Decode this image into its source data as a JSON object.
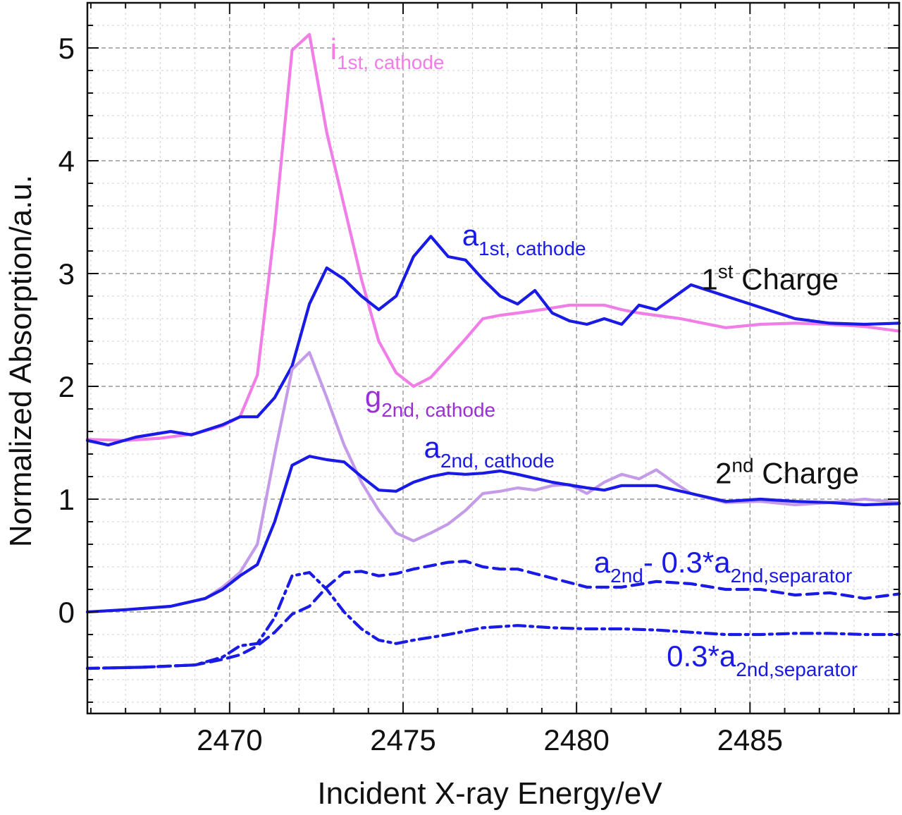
{
  "chart_data": {
    "type": "line",
    "xlabel": "Incident X-ray Energy/eV",
    "ylabel": "Normalized Absorption/a.u.",
    "xlim": [
      2465.9,
      2489.3
    ],
    "ylim": [
      -0.9,
      5.4
    ],
    "xticks": [
      2470,
      2475,
      2480,
      2485
    ],
    "yticks": [
      0,
      1,
      2,
      3,
      4,
      5
    ],
    "grid": true,
    "colors": {
      "pink": "#f07ee6",
      "blue": "#1a1ae6",
      "violet": "#c49be8",
      "violet_text": "#9b2fd6",
      "pink_text": "#f07ee6",
      "black": "#111111"
    },
    "series": [
      {
        "name": "i 1st, cathode",
        "color": "#f07ee6",
        "style": "solid",
        "x": [
          2465.9,
          2467.0,
          2468.0,
          2469.0,
          2469.8,
          2470.3,
          2470.8,
          2471.3,
          2471.8,
          2472.3,
          2472.8,
          2473.3,
          2473.8,
          2474.3,
          2474.8,
          2475.3,
          2475.8,
          2476.3,
          2476.8,
          2477.3,
          2477.8,
          2478.3,
          2479.0,
          2479.8,
          2480.8,
          2481.3,
          2481.8,
          2483.0,
          2484.3,
          2485.3,
          2486.3,
          2487.3,
          2488.3,
          2489.3
        ],
        "y": [
          1.53,
          1.52,
          1.54,
          1.58,
          1.65,
          1.73,
          2.1,
          3.4,
          4.98,
          5.12,
          4.25,
          3.6,
          2.95,
          2.4,
          2.12,
          2.0,
          2.08,
          2.25,
          2.42,
          2.6,
          2.63,
          2.65,
          2.68,
          2.72,
          2.72,
          2.68,
          2.65,
          2.6,
          2.52,
          2.55,
          2.56,
          2.55,
          2.53,
          2.49
        ]
      },
      {
        "name": "a 1st, cathode",
        "color": "#1a1ae6",
        "style": "solid",
        "x": [
          2465.9,
          2466.5,
          2467.3,
          2468.3,
          2468.9,
          2469.8,
          2470.3,
          2470.8,
          2471.3,
          2471.8,
          2472.3,
          2472.8,
          2473.3,
          2473.8,
          2474.3,
          2474.8,
          2475.3,
          2475.8,
          2476.3,
          2476.8,
          2477.3,
          2477.8,
          2478.3,
          2478.8,
          2479.3,
          2479.8,
          2480.3,
          2480.8,
          2481.3,
          2481.8,
          2482.3,
          2483.3,
          2484.3,
          2485.3,
          2486.3,
          2487.3,
          2488.3,
          2489.3
        ],
        "y": [
          1.52,
          1.48,
          1.55,
          1.6,
          1.57,
          1.66,
          1.73,
          1.73,
          1.9,
          2.18,
          2.73,
          3.05,
          2.95,
          2.8,
          2.68,
          2.8,
          3.15,
          3.33,
          3.15,
          3.12,
          2.95,
          2.8,
          2.73,
          2.85,
          2.65,
          2.58,
          2.55,
          2.6,
          2.55,
          2.72,
          2.68,
          2.9,
          2.8,
          2.7,
          2.6,
          2.56,
          2.55,
          2.56
        ]
      },
      {
        "name": "g 2nd, cathode",
        "color": "#c49be8",
        "style": "solid",
        "x": [
          2465.9,
          2467.0,
          2468.3,
          2469.3,
          2469.8,
          2470.3,
          2470.8,
          2471.3,
          2471.8,
          2472.3,
          2472.8,
          2473.3,
          2473.8,
          2474.3,
          2474.8,
          2475.3,
          2475.8,
          2476.3,
          2476.8,
          2477.3,
          2477.8,
          2478.3,
          2478.8,
          2479.3,
          2479.8,
          2480.3,
          2480.8,
          2481.3,
          2481.8,
          2482.3,
          2482.8,
          2483.3,
          2484.3,
          2485.3,
          2486.3,
          2487.3,
          2488.3,
          2489.3
        ],
        "y": [
          0.0,
          0.02,
          0.05,
          0.12,
          0.22,
          0.35,
          0.6,
          1.4,
          2.15,
          2.3,
          1.9,
          1.48,
          1.15,
          0.9,
          0.7,
          0.63,
          0.7,
          0.78,
          0.9,
          1.05,
          1.07,
          1.1,
          1.08,
          1.12,
          1.13,
          1.05,
          1.15,
          1.22,
          1.18,
          1.26,
          1.15,
          1.05,
          0.97,
          0.98,
          0.95,
          0.97,
          1.0,
          0.97
        ]
      },
      {
        "name": "a 2nd, cathode",
        "color": "#1a1ae6",
        "style": "solid",
        "x": [
          2465.9,
          2467.0,
          2468.3,
          2469.3,
          2469.8,
          2470.3,
          2470.8,
          2471.3,
          2471.8,
          2472.3,
          2472.8,
          2473.3,
          2473.8,
          2474.3,
          2474.8,
          2475.3,
          2475.8,
          2476.3,
          2476.8,
          2477.3,
          2477.8,
          2478.3,
          2479.3,
          2480.3,
          2480.8,
          2481.3,
          2482.3,
          2483.3,
          2484.3,
          2485.3,
          2486.3,
          2487.3,
          2488.3,
          2489.3
        ],
        "y": [
          0.0,
          0.02,
          0.05,
          0.12,
          0.2,
          0.32,
          0.42,
          0.8,
          1.3,
          1.38,
          1.35,
          1.33,
          1.2,
          1.08,
          1.07,
          1.15,
          1.2,
          1.23,
          1.22,
          1.23,
          1.25,
          1.22,
          1.15,
          1.1,
          1.08,
          1.12,
          1.12,
          1.05,
          0.98,
          1.0,
          0.98,
          0.97,
          0.95,
          0.96
        ]
      },
      {
        "name": "a 2nd - 0.3*a 2nd,separator",
        "color": "#1a1ae6",
        "style": "dashed",
        "x": [
          2465.9,
          2467.5,
          2469.0,
          2469.8,
          2470.3,
          2470.8,
          2471.3,
          2471.8,
          2472.3,
          2472.8,
          2473.3,
          2473.8,
          2474.3,
          2474.8,
          2475.3,
          2475.8,
          2476.3,
          2476.8,
          2477.3,
          2477.8,
          2478.3,
          2479.3,
          2480.3,
          2481.3,
          2482.3,
          2483.3,
          2484.3,
          2485.3,
          2486.3,
          2487.3,
          2488.3,
          2489.3
        ],
        "y": [
          -0.5,
          -0.49,
          -0.47,
          -0.42,
          -0.38,
          -0.3,
          -0.18,
          -0.02,
          0.05,
          0.22,
          0.35,
          0.36,
          0.32,
          0.34,
          0.38,
          0.41,
          0.44,
          0.45,
          0.4,
          0.38,
          0.38,
          0.3,
          0.22,
          0.22,
          0.27,
          0.25,
          0.2,
          0.2,
          0.15,
          0.17,
          0.12,
          0.16
        ]
      },
      {
        "name": "0.3*a 2nd,separator",
        "color": "#1a1ae6",
        "style": "dashdot",
        "x": [
          2465.9,
          2467.5,
          2469.0,
          2469.8,
          2470.3,
          2470.8,
          2471.3,
          2471.8,
          2472.3,
          2472.8,
          2473.3,
          2473.8,
          2474.3,
          2474.8,
          2475.3,
          2476.3,
          2477.3,
          2478.3,
          2479.3,
          2480.3,
          2481.3,
          2482.3,
          2483.3,
          2484.3,
          2485.3,
          2486.3,
          2487.3,
          2488.3,
          2489.3
        ],
        "y": [
          -0.5,
          -0.49,
          -0.47,
          -0.4,
          -0.3,
          -0.28,
          -0.05,
          0.32,
          0.35,
          0.2,
          0.0,
          -0.15,
          -0.25,
          -0.28,
          -0.25,
          -0.2,
          -0.14,
          -0.12,
          -0.14,
          -0.15,
          -0.15,
          -0.16,
          -0.18,
          -0.2,
          -0.2,
          -0.19,
          -0.19,
          -0.2,
          -0.2
        ]
      }
    ],
    "annotations": [
      {
        "main": "i",
        "sub": "1st, cathode",
        "sup": "",
        "after": "",
        "sub2": "",
        "color": "#f07ee6",
        "x": 2472.9,
        "y": 4.9
      },
      {
        "main": "a",
        "sub": "1st, cathode",
        "sup": "",
        "after": "",
        "sub2": "",
        "color": "#1a1ae6",
        "x": 2476.7,
        "y": 3.25
      },
      {
        "main": "1",
        "sub": "",
        "sup": "st",
        "after": " Charge",
        "sub2": "",
        "color": "#111111",
        "x": 2483.6,
        "y": 2.86
      },
      {
        "main": "g",
        "sub": "2nd, cathode",
        "sup": "",
        "after": "",
        "sub2": "",
        "color": "#9b2fd6",
        "x": 2473.9,
        "y": 1.82
      },
      {
        "main": "a",
        "sub": "2nd, cathode",
        "sup": "",
        "after": "",
        "sub2": "",
        "color": "#1a1ae6",
        "x": 2475.6,
        "y": 1.37
      },
      {
        "main": "2",
        "sub": "",
        "sup": "nd",
        "after": " Charge",
        "sub2": "",
        "color": "#111111",
        "x": 2484.0,
        "y": 1.14
      },
      {
        "main": "a",
        "sub": "2nd",
        "sup": "",
        "after": "- 0.3*a",
        "sub2": "2nd,separator",
        "color": "#1a1ae6",
        "x": 2480.5,
        "y": 0.35
      },
      {
        "main": "0.3*a",
        "sub": "2nd,separator",
        "sup": "",
        "after": "",
        "sub2": "",
        "color": "#1a1ae6",
        "x": 2482.6,
        "y": -0.48
      }
    ]
  }
}
